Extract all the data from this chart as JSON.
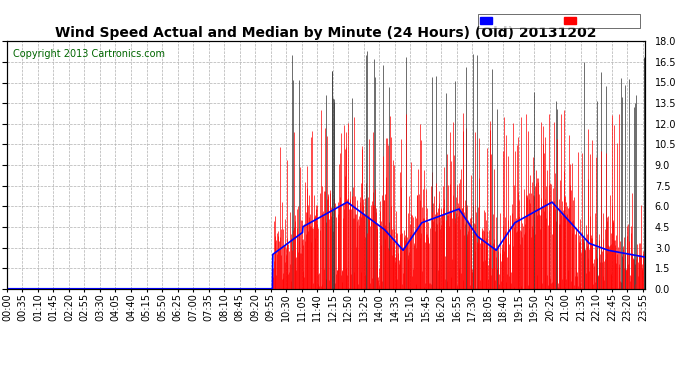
{
  "title": "Wind Speed Actual and Median by Minute (24 Hours) (Old) 20131202",
  "copyright": "Copyright 2013 Cartronics.com",
  "ylabel_right_ticks": [
    0.0,
    1.5,
    3.0,
    4.5,
    6.0,
    7.5,
    9.0,
    10.5,
    12.0,
    13.5,
    15.0,
    16.5,
    18.0
  ],
  "ylim": [
    0,
    18.0
  ],
  "total_minutes": 1440,
  "transition_minute": 600,
  "background_color": "#ffffff",
  "plot_bg_color": "#ffffff",
  "grid_color": "#b0b0b0",
  "wind_color": "#ff0000",
  "median_color": "#0000ff",
  "legend_median_bg": "#0000ff",
  "legend_wind_bg": "#ff0000",
  "title_fontsize": 10,
  "copyright_fontsize": 7,
  "tick_fontsize": 7
}
